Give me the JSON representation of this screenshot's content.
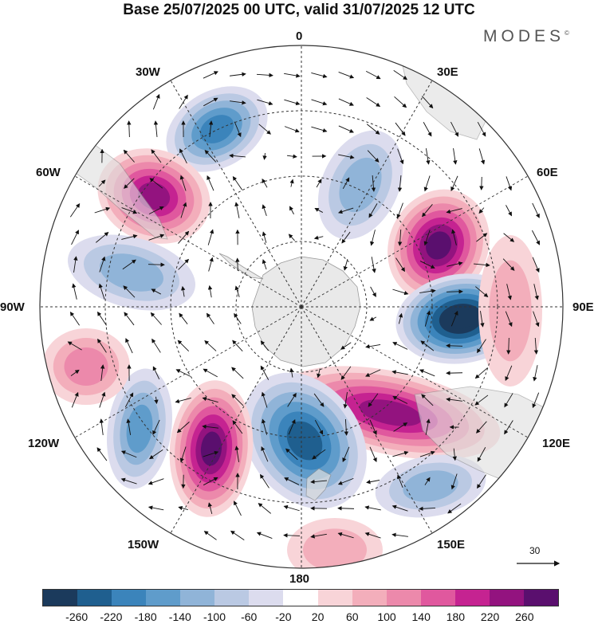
{
  "title": "Base 25/07/2025 00 UTC, valid 31/07/2025 12 UTC",
  "brand": {
    "text": "MODES",
    "mark": "©"
  },
  "map": {
    "projection": "south-polar-stereographic",
    "longitude_labels": [
      "0",
      "30E",
      "60E",
      "90E",
      "120E",
      "150E",
      "180",
      "150W",
      "120W",
      "90W",
      "60W",
      "30W"
    ],
    "reference_vector": {
      "label": "30"
    },
    "colors": {
      "land": "#e8e8e8",
      "coast": "#8a8a8a",
      "graticule": "#333333",
      "wind": "#111111"
    },
    "anomaly_blobs": [
      {
        "name": "low-south-atlantic",
        "sign": "neg",
        "level": 5
      },
      {
        "name": "high-argentina",
        "sign": "pos",
        "level": 6
      },
      {
        "name": "high-indian-ocean-south-africa",
        "sign": "pos",
        "level": 7
      },
      {
        "name": "low-south-indian-ocean",
        "sign": "neg",
        "level": 8
      },
      {
        "name": "high-southern-australia",
        "sign": "pos",
        "level": 6
      },
      {
        "name": "low-ross-sea",
        "sign": "neg",
        "level": 6
      },
      {
        "name": "high-amundsen-sea",
        "sign": "pos",
        "level": 7
      },
      {
        "name": "low-southeast-pacific",
        "sign": "neg",
        "level": 4
      },
      {
        "name": "low-drake-passage",
        "sign": "neg",
        "level": 3
      },
      {
        "name": "high-weddell-sea",
        "sign": "pos",
        "level": 3
      },
      {
        "name": "low-south-indian-west",
        "sign": "neg",
        "level": 3
      },
      {
        "name": "high-east-pacific",
        "sign": "pos",
        "level": 2
      },
      {
        "name": "high-tasman",
        "sign": "pos",
        "level": 2
      },
      {
        "name": "low-new-zealand-east",
        "sign": "neg",
        "level": 3
      }
    ]
  },
  "colorbar": {
    "colors": [
      "#1b3a5c",
      "#1f5f8f",
      "#3b84bb",
      "#5f9ccb",
      "#90b4d8",
      "#bac9e3",
      "#dcdcee",
      "#ffffff",
      "#f8d4d8",
      "#f3aebb",
      "#ec89ab",
      "#e0589e",
      "#c52391",
      "#93137f",
      "#5a0f6e"
    ],
    "ticks": [
      "-260",
      "-220",
      "-180",
      "-140",
      "-100",
      "-60",
      "-20",
      "20",
      "60",
      "100",
      "140",
      "180",
      "220",
      "260"
    ]
  }
}
